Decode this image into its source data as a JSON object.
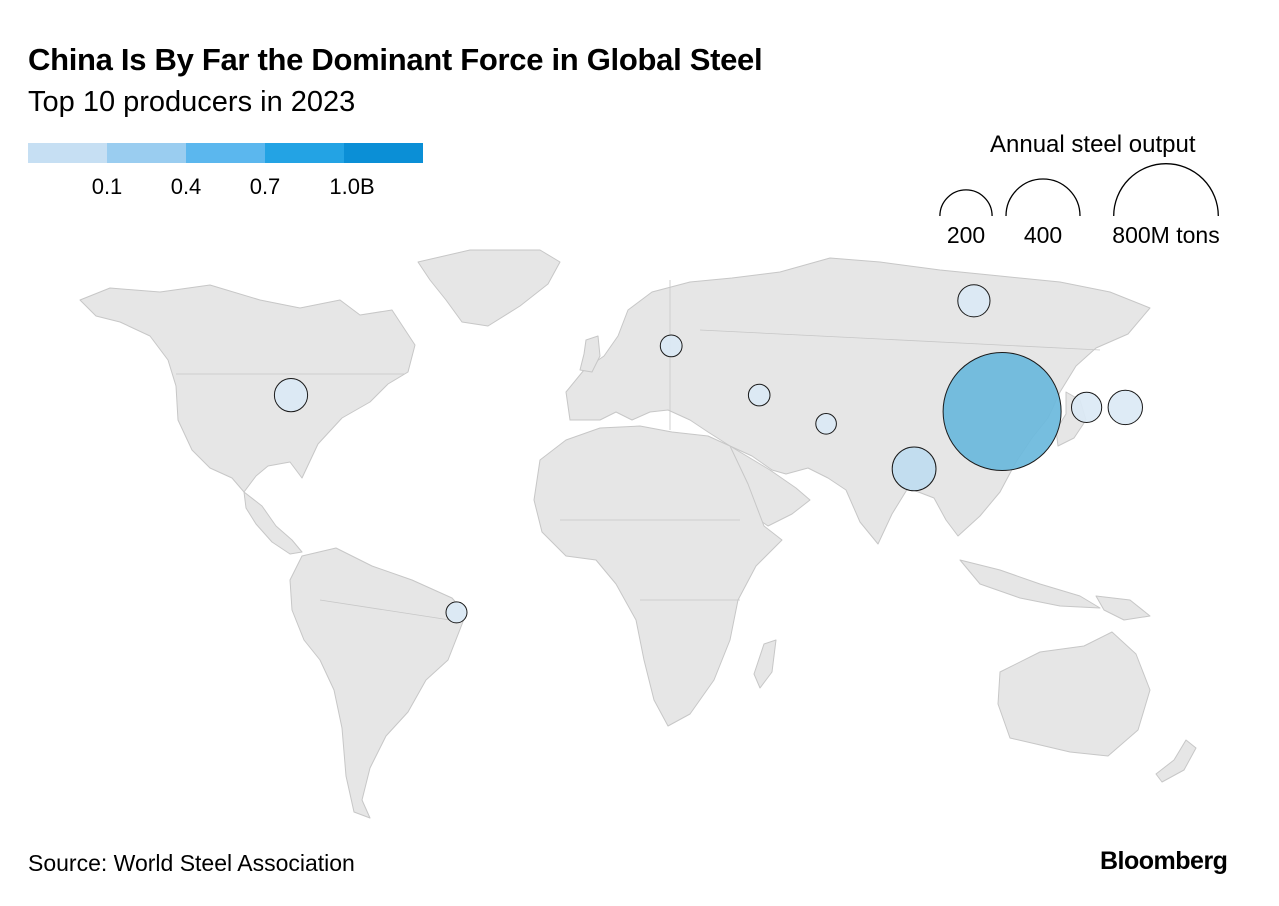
{
  "title": "China Is By Far the Dominant Force in Global Steel",
  "subtitle": "Top 10 producers in 2023",
  "color_legend": {
    "colors": [
      "#c6dff3",
      "#9acdf0",
      "#5bb7ee",
      "#23a3e4",
      "#0b8fd6"
    ],
    "labels": [
      "0.1",
      "0.4",
      "0.7",
      "1.0B"
    ]
  },
  "size_legend": {
    "title": "Annual steel output",
    "items": [
      {
        "value": 200,
        "label": "200"
      },
      {
        "value": 400,
        "label": "400"
      },
      {
        "value": 800,
        "label": "800M tons"
      }
    ]
  },
  "source": "Source: World Steel Association",
  "brand": "Bloomberg",
  "chart_data": {
    "type": "proportional-symbol-map",
    "title": "China Is By Far the Dominant Force in Global Steel",
    "subtitle": "Top 10 producers in 2023",
    "units": "million tons",
    "points": [
      {
        "country": "China",
        "lat": 35,
        "lon": 104,
        "value": 1019,
        "color": "#6ab8dc"
      },
      {
        "country": "India",
        "lat": 21,
        "lon": 79,
        "value": 141,
        "color": "#bfdcf0"
      },
      {
        "country": "Japan",
        "lat": 36,
        "lon": 139,
        "value": 87,
        "color": "#dbe9f5"
      },
      {
        "country": "United States",
        "lat": 39,
        "lon": -98,
        "value": 81,
        "color": "#dbe9f5"
      },
      {
        "country": "Russia",
        "lat": 62,
        "lon": 96,
        "value": 76,
        "color": "#dbe9f5"
      },
      {
        "country": "South Korea",
        "lat": 36,
        "lon": 128,
        "value": 67,
        "color": "#dbe9f5"
      },
      {
        "country": "Germany",
        "lat": 51,
        "lon": 10,
        "value": 35,
        "color": "#dbe9f5"
      },
      {
        "country": "Turkey",
        "lat": 39,
        "lon": 35,
        "value": 34,
        "color": "#dbe9f5"
      },
      {
        "country": "Brazil",
        "lat": -14,
        "lon": -51,
        "value": 32,
        "color": "#dbe9f5"
      },
      {
        "country": "Iran",
        "lat": 32,
        "lon": 54,
        "value": 31,
        "color": "#dbe9f5"
      }
    ]
  }
}
